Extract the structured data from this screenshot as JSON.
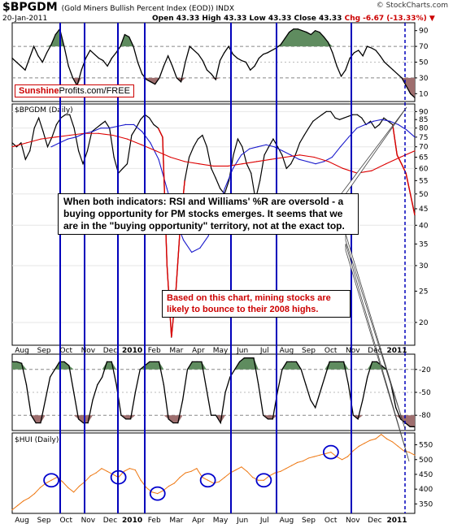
{
  "header": {
    "symbol": "$BPGDM",
    "description": "(Gold Miners Bullish Percent Index (EOD)) INDX",
    "date": "20-Jan-2011",
    "ohlc": "Open 43.33  High 43.33  Low 43.33  Close 43.33",
    "change": "Chg -6.67 (-13.33%)",
    "change_arrow": "down-arrow-icon",
    "brand": "© StockCharts.com"
  },
  "badge": {
    "brand1": "Sunshine",
    "brand2": "Profits.com/FREE"
  },
  "annotations": {
    "main": "When both indicators: RSI and Williams' %R are oversold - a buying opportunity for PM stocks emerges. It seems that we are in the \"buying opportunity\" territory, not at the exact top.",
    "secondary": "Based on this chart, mining stocks are likely to bounce to their 2008 highs."
  },
  "colors": {
    "price": "#000000",
    "ma_short": "#1a1acc",
    "ma_long": "#dd0000",
    "recent": "#dd0000",
    "overbought": "#5f8c5f",
    "oversold": "#9e6e6e",
    "vline": "#0000bb",
    "hui": "#ee7711",
    "circle": "#0000cc"
  },
  "chart_data": [
    {
      "name": "RSI",
      "type": "line",
      "y_ticks": [
        10,
        30,
        50,
        70,
        90
      ],
      "shade_above": 70,
      "shade_below": 30,
      "ylim": [
        0,
        100
      ],
      "values": [
        55,
        50,
        45,
        40,
        55,
        70,
        58,
        50,
        62,
        72,
        85,
        92,
        70,
        45,
        30,
        20,
        40,
        55,
        65,
        60,
        55,
        52,
        45,
        55,
        62,
        70,
        85,
        82,
        70,
        50,
        35,
        28,
        25,
        22,
        30,
        45,
        58,
        45,
        30,
        25,
        50,
        70,
        65,
        60,
        52,
        40,
        35,
        28,
        52,
        62,
        70,
        60,
        55,
        52,
        50,
        40,
        45,
        55,
        60,
        62,
        65,
        68,
        72,
        80,
        88,
        92,
        92,
        90,
        88,
        85,
        90,
        88,
        82,
        75,
        62,
        45,
        32,
        40,
        55,
        62,
        65,
        58,
        70,
        68,
        65,
        58,
        50,
        45,
        40,
        35,
        30,
        20,
        10,
        5
      ]
    },
    {
      "name": "$BPGDM (Daily)",
      "type": "line",
      "label": "$BPGDM (Daily)",
      "y_ticks": [
        20,
        25,
        30,
        35,
        40,
        45,
        50,
        55,
        60,
        65,
        70,
        75,
        80,
        85,
        90
      ],
      "ylim": [
        17,
        95
      ],
      "log_scale": true,
      "series": [
        {
          "name": "price",
          "values": [
            72,
            70,
            72,
            64,
            68,
            80,
            86,
            78,
            70,
            75,
            82,
            86,
            88,
            88,
            80,
            68,
            62,
            68,
            78,
            80,
            82,
            84,
            80,
            65,
            58,
            60,
            62,
            76,
            80,
            85,
            88,
            86,
            82,
            80,
            75,
            30,
            18,
            25,
            40,
            55,
            65,
            70,
            74,
            76,
            70,
            60,
            56,
            52,
            50,
            55,
            66,
            74,
            70,
            62,
            58,
            48,
            55,
            66,
            70,
            74,
            70,
            66,
            60,
            62,
            66,
            72,
            76,
            80,
            84,
            86,
            88,
            90,
            90,
            86,
            85,
            86,
            87,
            88,
            88,
            86,
            82,
            84,
            80,
            82,
            86,
            84,
            82,
            66,
            62,
            58,
            50,
            43
          ]
        },
        {
          "name": "ma_short",
          "values": [
            70,
            72,
            74,
            75,
            77,
            78,
            80,
            80,
            81,
            82,
            82,
            78,
            72,
            64,
            52,
            42,
            36,
            33,
            34,
            37,
            43,
            52,
            60,
            66,
            69,
            70,
            71,
            70,
            68,
            66,
            64,
            63,
            62,
            63,
            65,
            70,
            75,
            80,
            82,
            84,
            85,
            84,
            82,
            79,
            75
          ]
        },
        {
          "name": "ma_long",
          "values": [
            70,
            72,
            74,
            75,
            76,
            77,
            77,
            76,
            74,
            71,
            68,
            65,
            63,
            62,
            61,
            61,
            62,
            63,
            64,
            65,
            66,
            65,
            63,
            60,
            58,
            59,
            62,
            65,
            68
          ]
        }
      ]
    },
    {
      "name": "Williams %R",
      "type": "line",
      "y_ticks": [
        -20,
        -50,
        -80
      ],
      "shade_above": -20,
      "shade_below": -80,
      "ylim": [
        -100,
        0
      ],
      "values": [
        -10,
        -10,
        -12,
        -40,
        -80,
        -90,
        -90,
        -60,
        -30,
        -20,
        -10,
        -10,
        -15,
        -50,
        -85,
        -90,
        -90,
        -60,
        -40,
        -30,
        -10,
        -10,
        -40,
        -80,
        -85,
        -85,
        -50,
        -20,
        -15,
        -10,
        -10,
        -10,
        -40,
        -85,
        -90,
        -90,
        -60,
        -20,
        -10,
        -10,
        -10,
        -45,
        -80,
        -80,
        -90,
        -50,
        -30,
        -20,
        -10,
        -5,
        -5,
        -5,
        -40,
        -80,
        -85,
        -85,
        -50,
        -20,
        -10,
        -10,
        -10,
        -20,
        -40,
        -60,
        -70,
        -50,
        -30,
        -10,
        -10,
        -10,
        -10,
        -40,
        -80,
        -85,
        -60,
        -30,
        -10,
        -10,
        -15,
        -20,
        -40,
        -70,
        -85,
        -90,
        -95,
        -95
      ]
    },
    {
      "name": "$HUI (Daily)",
      "type": "line",
      "label": "$HUI (Daily)",
      "y_ticks": [
        350,
        400,
        450,
        500,
        550
      ],
      "ylim": [
        318,
        590
      ],
      "values": [
        330,
        345,
        360,
        370,
        385,
        405,
        420,
        430,
        440,
        425,
        405,
        390,
        410,
        425,
        445,
        455,
        470,
        460,
        450,
        440,
        460,
        470,
        465,
        430,
        405,
        390,
        385,
        395,
        410,
        420,
        440,
        455,
        460,
        470,
        440,
        430,
        420,
        425,
        440,
        455,
        465,
        475,
        460,
        440,
        430,
        430,
        445,
        455,
        460,
        470,
        480,
        490,
        495,
        505,
        510,
        515,
        520,
        525,
        510,
        500,
        510,
        530,
        545,
        555,
        565,
        570,
        585,
        570,
        560,
        545,
        530,
        525,
        515
      ],
      "circled_lows_index": [
        7,
        19,
        26,
        35,
        45,
        57
      ]
    }
  ],
  "x_axis_labels": [
    "Aug",
    "Sep",
    "Oct",
    "Nov",
    "Dec",
    "2010",
    "Feb",
    "Mar",
    "Apr",
    "May",
    "Jun",
    "Jul",
    "Aug",
    "Sep",
    "Oct",
    "Nov",
    "Dec",
    "2011"
  ]
}
